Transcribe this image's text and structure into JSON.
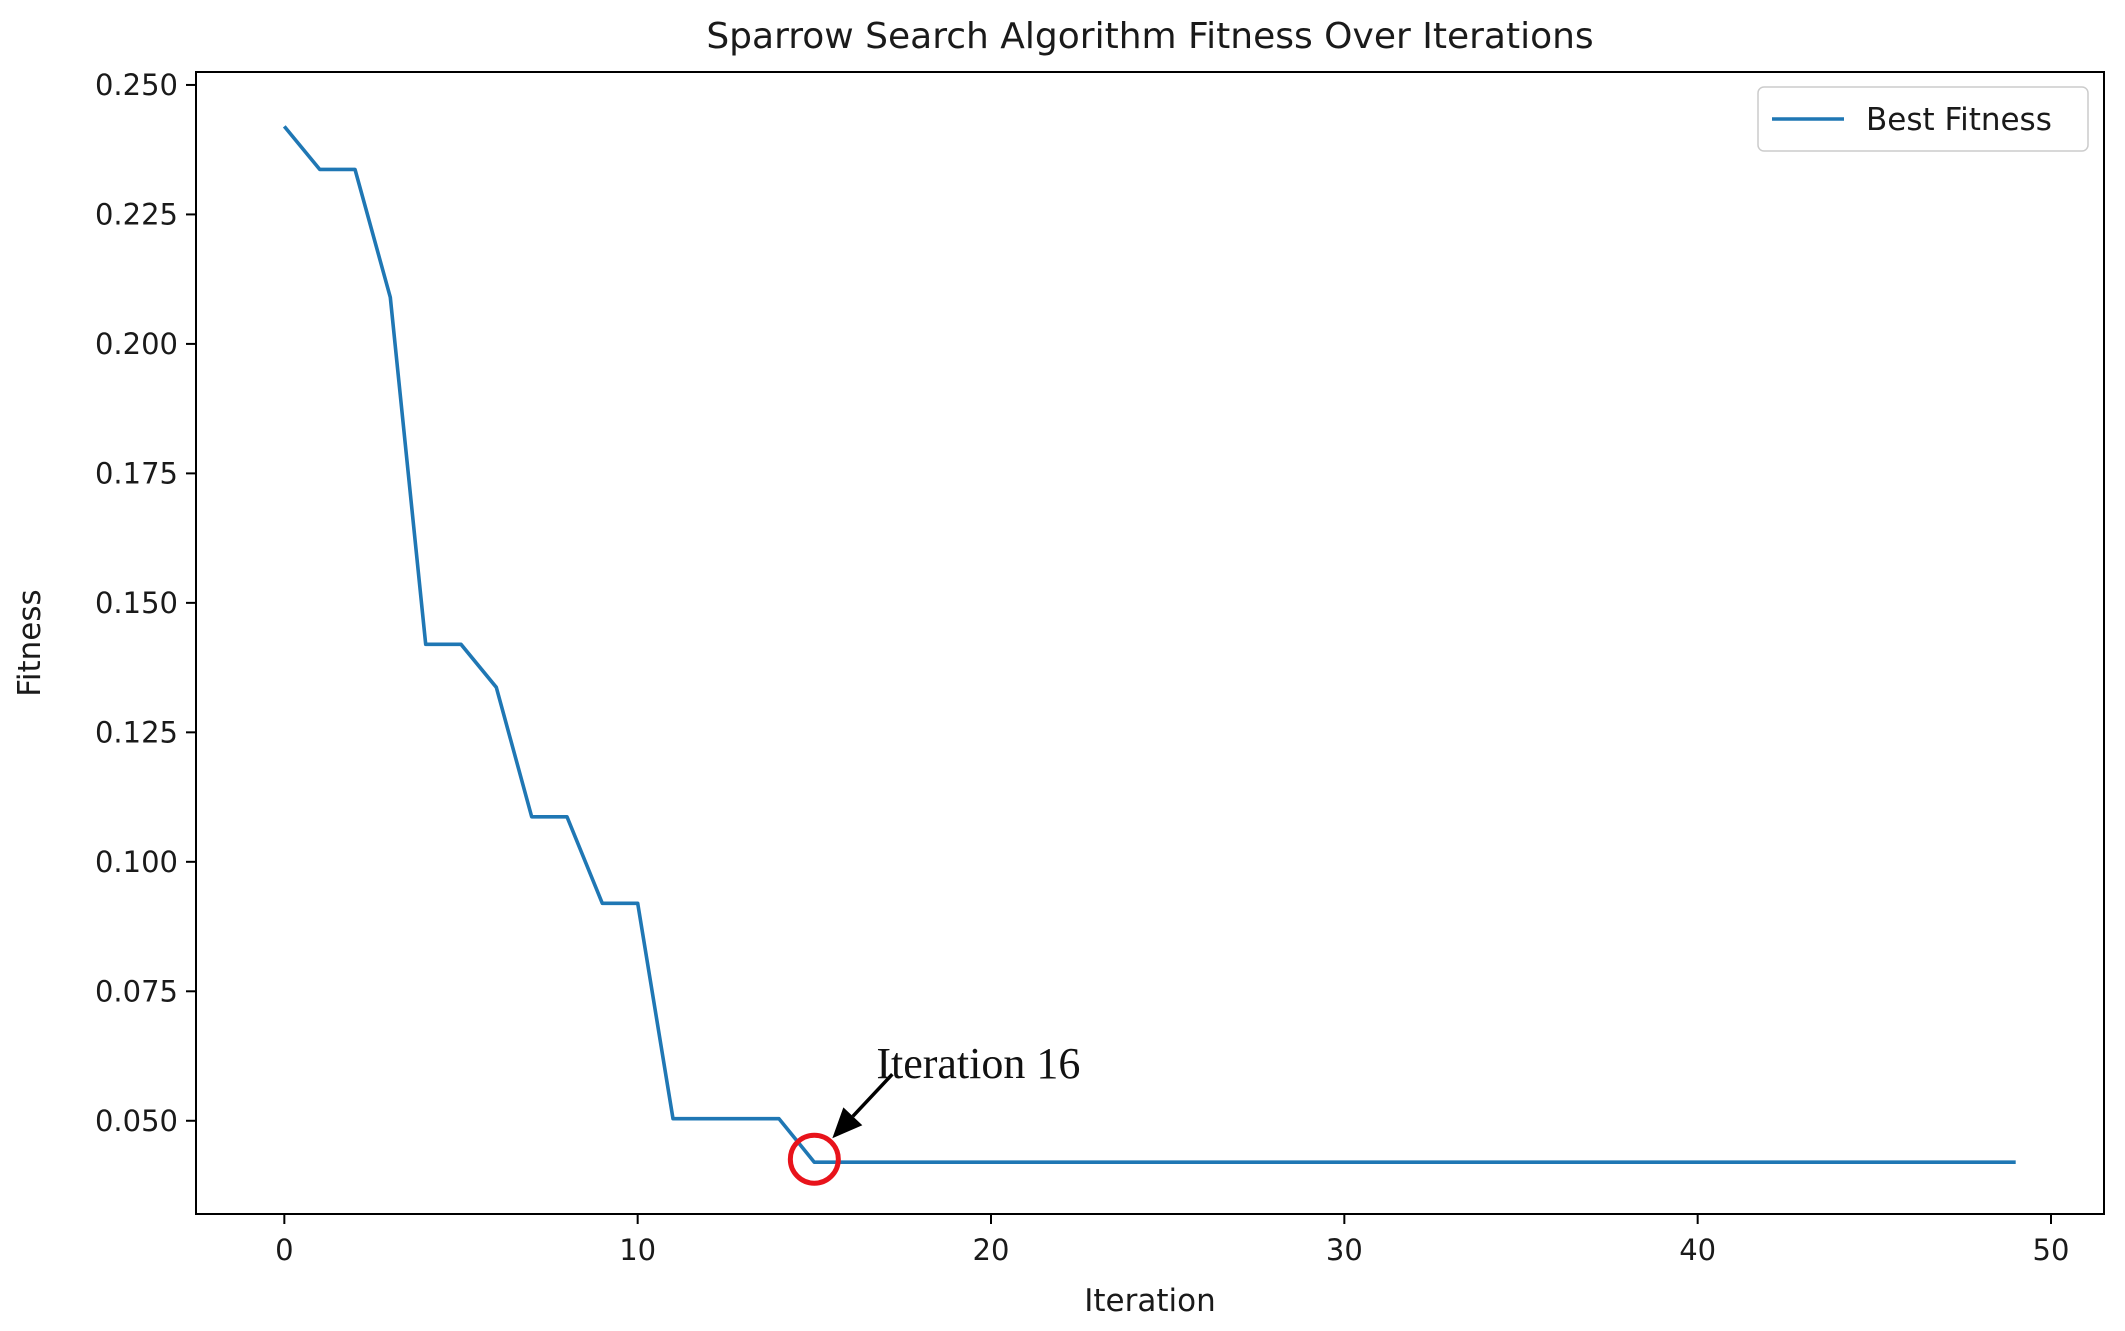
{
  "chart_data": {
    "type": "line",
    "title": "Sparrow Search Algorithm Fitness Over Iterations",
    "xlabel": "Iteration",
    "ylabel": "Fitness",
    "xlim": [
      -2.5,
      51.5
    ],
    "ylim": [
      0.032,
      0.2525
    ],
    "xticks": [
      0,
      10,
      20,
      30,
      40,
      50
    ],
    "yticks": [
      0.05,
      0.075,
      0.1,
      0.125,
      0.15,
      0.175,
      0.2,
      0.225,
      0.25
    ],
    "ytick_labels": [
      "0.050",
      "0.075",
      "0.100",
      "0.125",
      "0.150",
      "0.175",
      "0.200",
      "0.225",
      "0.250"
    ],
    "grid": false,
    "legend_position": "top-right",
    "series": [
      {
        "name": "Best Fitness",
        "color": "#1f77b4",
        "x": [
          0,
          1,
          2,
          3,
          4,
          5,
          6,
          7,
          8,
          9,
          10,
          11,
          12,
          13,
          14,
          15,
          16,
          17,
          18,
          19,
          20,
          21,
          22,
          23,
          24,
          25,
          26,
          27,
          28,
          29,
          30,
          31,
          32,
          33,
          34,
          35,
          36,
          37,
          38,
          39,
          40,
          41,
          42,
          43,
          44,
          45,
          46,
          47,
          48,
          49
        ],
        "y": [
          0.242,
          0.2337,
          0.2337,
          0.209,
          0.142,
          0.142,
          0.1337,
          0.1087,
          0.1087,
          0.092,
          0.092,
          0.0504,
          0.0504,
          0.0504,
          0.0504,
          0.042,
          0.042,
          0.042,
          0.042,
          0.042,
          0.042,
          0.042,
          0.042,
          0.042,
          0.042,
          0.042,
          0.042,
          0.042,
          0.042,
          0.042,
          0.042,
          0.042,
          0.042,
          0.042,
          0.042,
          0.042,
          0.042,
          0.042,
          0.042,
          0.042,
          0.042,
          0.042,
          0.042,
          0.042,
          0.042,
          0.042,
          0.042,
          0.042,
          0.042,
          0.042
        ]
      }
    ],
    "annotation": {
      "text": "Iteration 16",
      "point_x": 15,
      "point_y": 0.042,
      "marker_color": "#e8131b",
      "arrow_color": "#000000"
    }
  }
}
